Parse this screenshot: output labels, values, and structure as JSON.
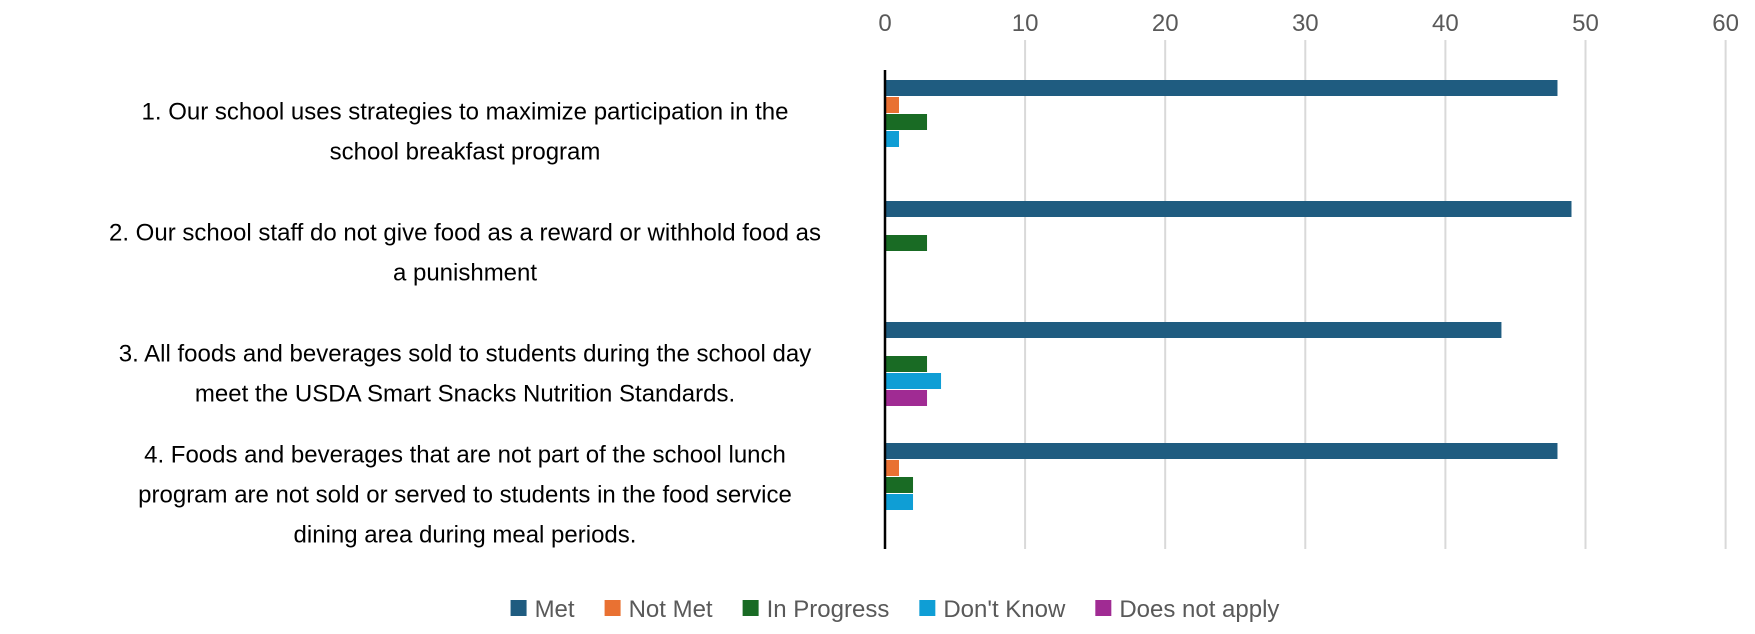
{
  "chart_data": {
    "type": "bar",
    "orientation": "horizontal",
    "title": "",
    "xlabel": "",
    "ylabel": "",
    "xlim": [
      0,
      60
    ],
    "xticks": [
      0,
      10,
      20,
      30,
      40,
      50,
      60
    ],
    "x_axis_position": "top",
    "grid": true,
    "legend_position": "bottom",
    "categories": [
      [
        "1. Our school uses strategies to maximize participation in the",
        "school breakfast program"
      ],
      [
        "2. Our school staff do not give food as a reward or withhold food as",
        "a punishment"
      ],
      [
        "3. All foods and beverages sold to students during the school day",
        "meet the USDA Smart Snacks Nutrition Standards."
      ],
      [
        "4. Foods and beverages that are not part of the school lunch",
        "program are not sold or served to students in the food service",
        "dining area during meal periods."
      ]
    ],
    "series": [
      {
        "name": "Met",
        "color": "#1F5C80",
        "values": [
          48,
          49,
          44,
          48
        ]
      },
      {
        "name": "Not Met",
        "color": "#E97132",
        "values": [
          1,
          0,
          0,
          1
        ]
      },
      {
        "name": "In Progress",
        "color": "#196B24",
        "values": [
          3,
          3,
          3,
          2
        ]
      },
      {
        "name": "Don't Know",
        "color": "#0F9ED5",
        "values": [
          1,
          0,
          4,
          2
        ]
      },
      {
        "name": "Does not apply",
        "color": "#A02B93",
        "values": [
          0,
          0,
          3,
          0
        ]
      }
    ]
  }
}
